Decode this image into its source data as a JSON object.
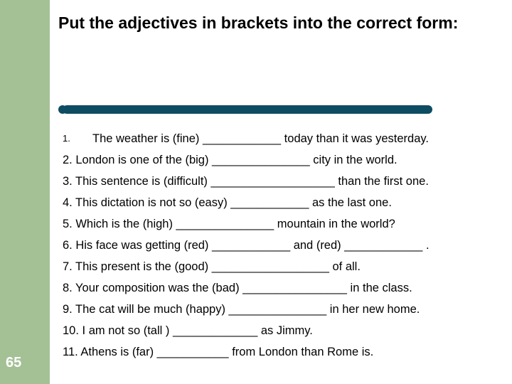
{
  "pageNumber": "65",
  "title": "Put the adjectives in brackets into the correct form:",
  "items": [
    {
      "num": "1.",
      "text": "The weather is (fine) ____________  today than it was yesterday."
    },
    {
      "num": "",
      "text": "2. London is one of the (big) _______________ city in the world."
    },
    {
      "num": "",
      "text": "3. This sentence is (difficult) ___________________ than the first one."
    },
    {
      "num": "",
      "text": "4. This dictation is not so (easy) ____________ as the last one."
    },
    {
      "num": "",
      "text": "5. Which is the (high) _______________ mountain in the world?"
    },
    {
      "num": "",
      "text": "6. His face was getting (red) ____________  and (red) ____________ ."
    },
    {
      "num": "",
      "text": "7. This present is the (good) __________________ of all."
    },
    {
      "num": "",
      "text": "8. Your composition was  the (bad) ________________ in the class."
    },
    {
      "num": "",
      "text": "9. The cat will be much (happy) _______________ in her new home."
    },
    {
      "num": "",
      "text": "10. I am not so (tall ) _____________ as Jimmy."
    },
    {
      "num": "",
      "text": "11. Athens is (far) ___________ from London than Rome is."
    }
  ],
  "colors": {
    "sidebar": "#a4c195",
    "divider": "#0e4c63",
    "pageNumber": "#ffffff",
    "text": "#000000",
    "background": "#ffffff"
  }
}
